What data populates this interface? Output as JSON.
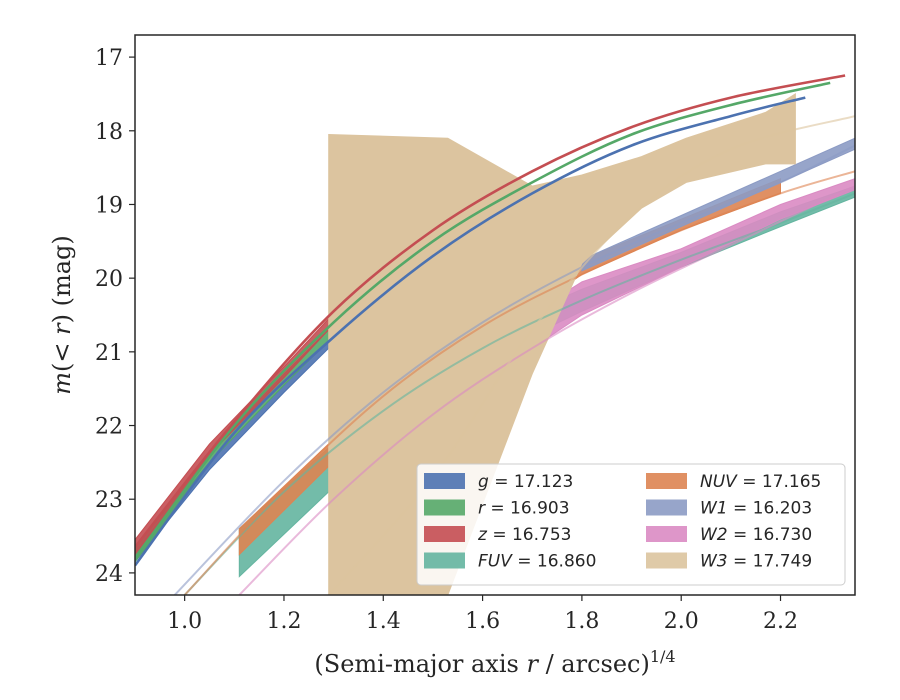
{
  "chart_data": {
    "type": "area",
    "xlabel": "(Semi-major axis r / arcsec)",
    "xlabel_superscript": "1/4",
    "ylabel": "m(< r) (mag)",
    "xlim": [
      0.9,
      2.35
    ],
    "ylim": [
      24.3,
      16.7
    ],
    "y_inverted": true,
    "x_ticks": [
      1.0,
      1.2,
      1.4,
      1.6,
      1.8,
      2.0,
      2.2
    ],
    "x_tick_labels": [
      "1.0",
      "1.2",
      "1.4",
      "1.6",
      "1.8",
      "2.0",
      "2.2"
    ],
    "y_ticks": [
      17,
      18,
      19,
      20,
      21,
      22,
      23,
      24
    ],
    "y_tick_labels": [
      "17",
      "18",
      "19",
      "20",
      "21",
      "22",
      "23",
      "24"
    ],
    "grid": false,
    "legend_position": "lower-right",
    "series": [
      {
        "name": "g",
        "legend": "g = 17.123",
        "color": "#4c72b0",
        "extrap": [
          [
            0.9,
            23.9
          ],
          [
            1.1,
            22.1
          ],
          [
            1.3,
            20.8
          ],
          [
            1.5,
            19.7
          ],
          [
            1.7,
            18.85
          ],
          [
            1.9,
            18.2
          ],
          [
            2.1,
            17.8
          ],
          [
            2.25,
            17.55
          ]
        ],
        "measured": [
          [
            0.9,
            23.85,
            23.7
          ],
          [
            1.05,
            22.6,
            22.5
          ],
          [
            1.2,
            21.55,
            21.45
          ],
          [
            1.29,
            20.95,
            20.85
          ]
        ]
      },
      {
        "name": "r",
        "legend": "r = 16.903",
        "color": "#55a868",
        "extrap": [
          [
            0.9,
            23.8
          ],
          [
            1.1,
            22.0
          ],
          [
            1.3,
            20.6
          ],
          [
            1.5,
            19.5
          ],
          [
            1.7,
            18.7
          ],
          [
            1.9,
            18.05
          ],
          [
            2.1,
            17.65
          ],
          [
            2.3,
            17.35
          ]
        ],
        "measured": [
          [
            0.9,
            23.85,
            23.65
          ],
          [
            1.05,
            22.5,
            22.35
          ],
          [
            1.2,
            21.45,
            21.3
          ],
          [
            1.29,
            20.85,
            20.7
          ]
        ]
      },
      {
        "name": "z",
        "legend": "z = 16.753",
        "color": "#c44e52",
        "extrap": [
          [
            0.9,
            23.65
          ],
          [
            1.1,
            21.95
          ],
          [
            1.3,
            20.45
          ],
          [
            1.5,
            19.35
          ],
          [
            1.7,
            18.55
          ],
          [
            1.9,
            17.95
          ],
          [
            2.1,
            17.55
          ],
          [
            2.33,
            17.25
          ]
        ],
        "measured": [
          [
            0.9,
            23.75,
            23.55
          ],
          [
            1.05,
            22.4,
            22.25
          ],
          [
            1.2,
            21.35,
            21.2
          ],
          [
            1.29,
            20.7,
            20.55
          ]
        ]
      },
      {
        "name": "FUV",
        "legend": "FUV = 16.860",
        "color": "#64b5a0",
        "extrap": [
          [
            1.0,
            24.3
          ],
          [
            1.2,
            22.9
          ],
          [
            1.4,
            21.8
          ],
          [
            1.6,
            20.95
          ],
          [
            1.8,
            20.3
          ],
          [
            2.0,
            19.75
          ],
          [
            2.2,
            19.25
          ],
          [
            2.35,
            18.85
          ]
        ],
        "measured": [
          [
            1.11,
            24.05,
            23.4
          ],
          [
            1.29,
            22.9,
            22.3
          ],
          [
            1.4,
            22.2,
            21.7
          ],
          [
            1.6,
            21.1,
            20.75
          ],
          [
            1.8,
            20.45,
            20.15
          ],
          [
            2.0,
            19.85,
            19.65
          ],
          [
            2.2,
            19.3,
            19.1
          ],
          [
            2.35,
            18.9,
            18.75
          ]
        ]
      },
      {
        "name": "NUV",
        "legend": "NUV = 17.165",
        "color": "#dd8452",
        "extrap": [
          [
            1.0,
            24.3
          ],
          [
            1.2,
            22.85
          ],
          [
            1.4,
            21.6
          ],
          [
            1.6,
            20.65
          ],
          [
            1.8,
            19.95
          ],
          [
            2.0,
            19.35
          ],
          [
            2.2,
            18.85
          ],
          [
            2.35,
            18.55
          ]
        ],
        "measured": [
          [
            1.11,
            23.75,
            23.4
          ],
          [
            1.29,
            22.55,
            22.25
          ],
          [
            1.5,
            21.35,
            21.1
          ],
          [
            1.8,
            19.95,
            19.75
          ],
          [
            2.0,
            19.35,
            19.2
          ],
          [
            2.2,
            18.85,
            18.65
          ]
        ]
      },
      {
        "name": "W1",
        "legend": "W1 = 16.203",
        "color": "#8c9bc4",
        "extrap": [
          [
            0.98,
            24.3
          ],
          [
            1.2,
            22.75
          ],
          [
            1.4,
            21.55
          ],
          [
            1.6,
            20.6
          ],
          [
            1.8,
            19.85
          ],
          [
            2.0,
            19.25
          ],
          [
            2.2,
            18.7
          ],
          [
            2.35,
            18.2
          ]
        ],
        "measured": [
          [
            1.8,
            19.9,
            19.75
          ],
          [
            2.0,
            19.3,
            19.15
          ],
          [
            2.2,
            18.7,
            18.55
          ],
          [
            2.35,
            18.25,
            18.1
          ]
        ]
      },
      {
        "name": "W2",
        "legend": "W2 = 16.730",
        "color": "#da8bc3",
        "extrap": [
          [
            1.11,
            24.3
          ],
          [
            1.3,
            23.0
          ],
          [
            1.5,
            21.85
          ],
          [
            1.7,
            20.95
          ],
          [
            1.9,
            20.2
          ],
          [
            2.1,
            19.55
          ],
          [
            2.35,
            18.75
          ]
        ],
        "measured": [
          [
            1.6,
            21.4,
            20.9
          ],
          [
            1.8,
            20.5,
            20.05
          ],
          [
            2.0,
            19.85,
            19.6
          ],
          [
            2.2,
            19.2,
            19.0
          ],
          [
            2.35,
            18.8,
            18.65
          ]
        ]
      },
      {
        "name": "W3",
        "legend": "W3 = 17.749",
        "color": "#dcc49f",
        "extrap": [
          [
            1.29,
            24.3
          ],
          [
            1.5,
            22.7
          ],
          [
            1.7,
            20.7
          ],
          [
            1.9,
            19.15
          ],
          [
            2.1,
            18.25
          ],
          [
            2.35,
            17.8
          ]
        ],
        "measured": [
          [
            1.29,
            24.3,
            18.05
          ],
          [
            1.53,
            24.3,
            18.1
          ],
          [
            1.7,
            21.3,
            18.75
          ],
          [
            1.8,
            19.8,
            18.6
          ],
          [
            1.92,
            19.05,
            18.35
          ],
          [
            2.01,
            18.7,
            18.1
          ],
          [
            2.17,
            18.45,
            17.75
          ],
          [
            2.23,
            18.45,
            17.5
          ]
        ]
      }
    ]
  }
}
